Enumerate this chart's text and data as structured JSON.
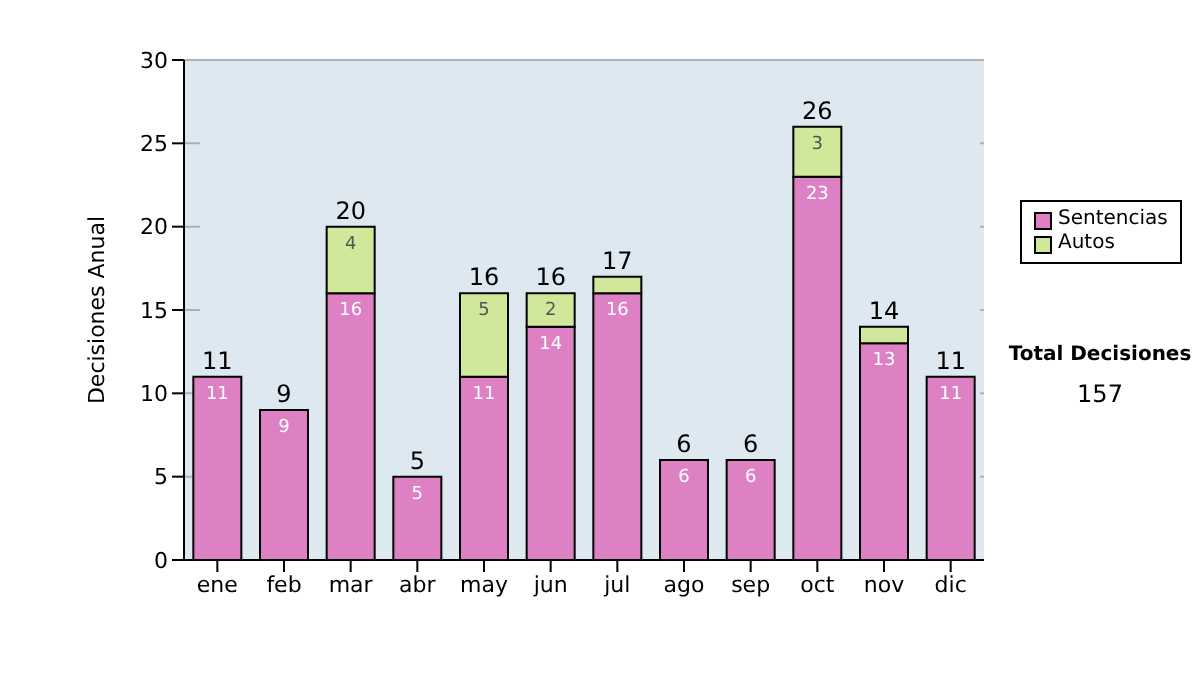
{
  "chart_data": {
    "type": "bar",
    "stacked": true,
    "ylabel": "Decisiones Anual",
    "categories": [
      "ene",
      "feb",
      "mar",
      "abr",
      "may",
      "jun",
      "jul",
      "ago",
      "sep",
      "oct",
      "nov",
      "dic"
    ],
    "series": [
      {
        "name": "Sentencias",
        "color": "#dd80c4",
        "values": [
          11,
          9,
          16,
          5,
          11,
          14,
          16,
          6,
          6,
          23,
          13,
          11
        ],
        "value_labels": [
          "11",
          "9",
          "16",
          "5",
          "11",
          "14",
          "16",
          "6",
          "6",
          "23",
          "13",
          "11"
        ]
      },
      {
        "name": "Autos",
        "color": "#d0e89a",
        "values": [
          null,
          null,
          4,
          null,
          5,
          2,
          1,
          null,
          null,
          3,
          1,
          null
        ],
        "value_labels": [
          null,
          null,
          "4",
          null,
          "5",
          "2",
          null,
          null,
          null,
          "3",
          null,
          null
        ]
      }
    ],
    "totals": [
      "11",
      "9",
      "20",
      "5",
      "16",
      "16",
      "17",
      "6",
      "6",
      "26",
      "14",
      "11"
    ],
    "ylim": [
      0,
      30
    ],
    "yticks": [
      0,
      5,
      10,
      15,
      20,
      25,
      30
    ],
    "grid": "y",
    "legend": "right",
    "annotations": [
      "Total Decisiones",
      "157"
    ]
  }
}
